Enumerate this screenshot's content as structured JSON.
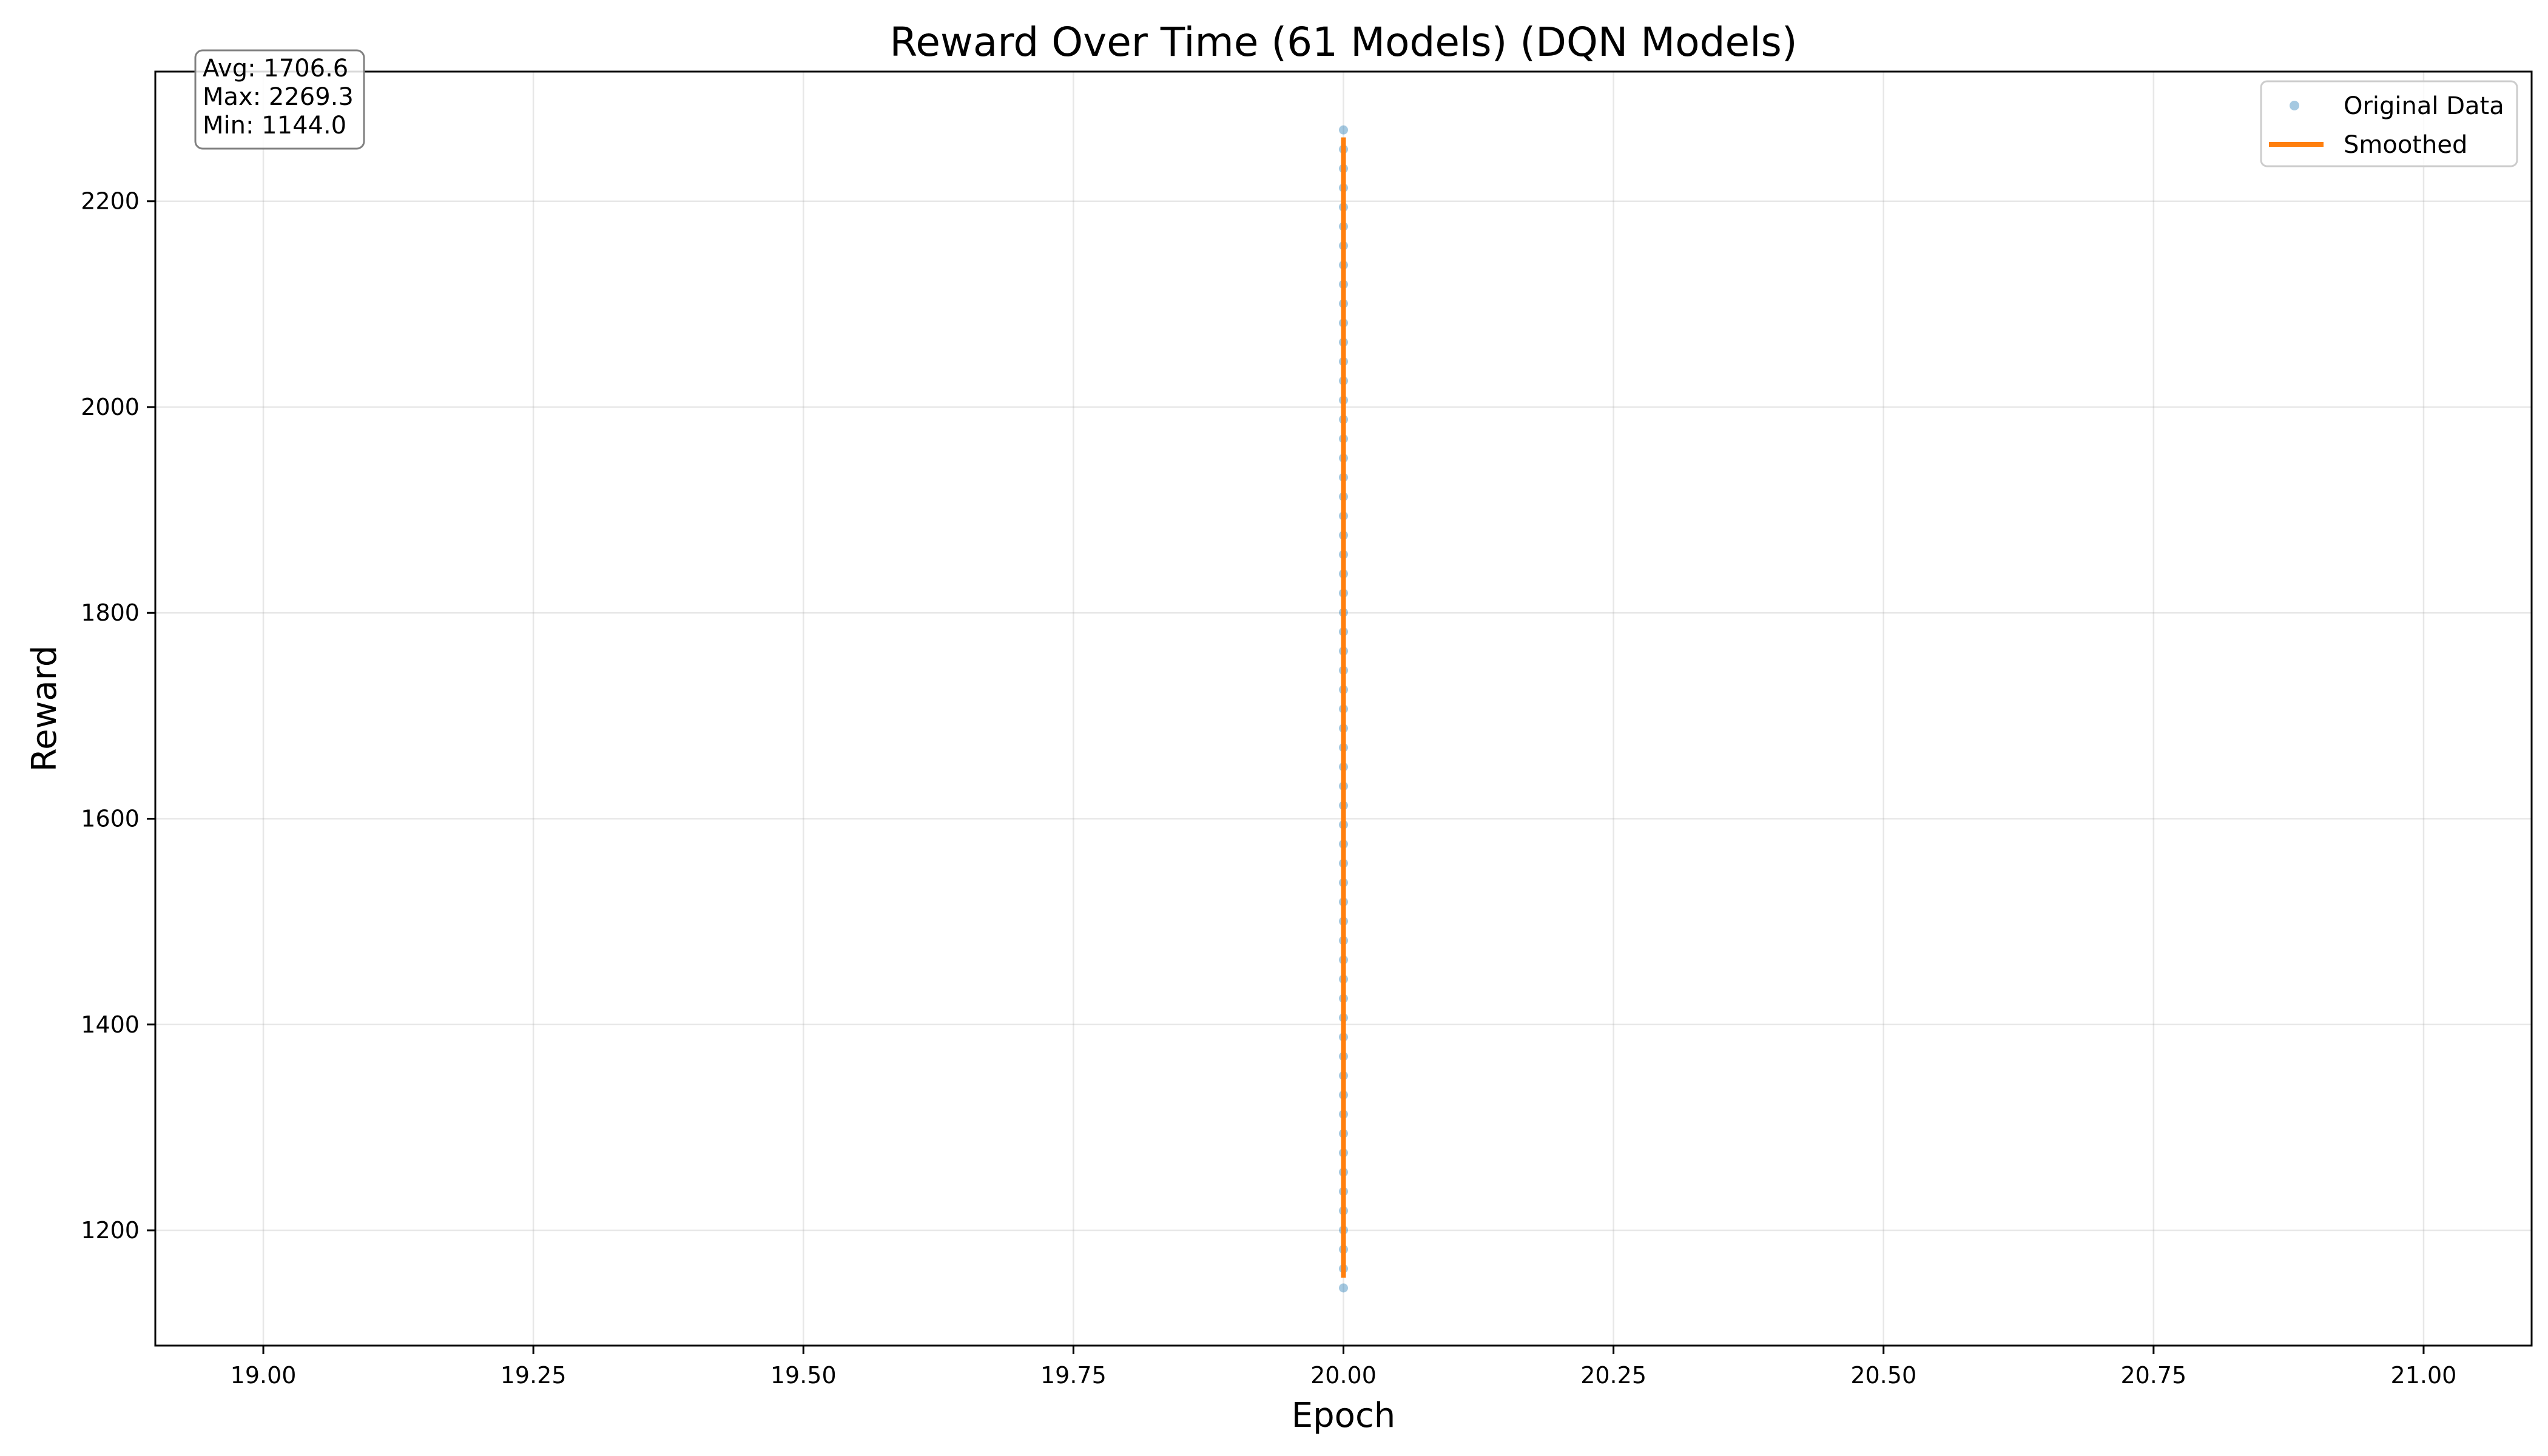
{
  "chart_data": {
    "type": "scatter",
    "title": "Reward Over Time (61 Models) (DQN Models)",
    "xlabel": "Epoch",
    "ylabel": "Reward",
    "xlim": [
      18.9,
      21.1
    ],
    "ylim": [
      1088,
      2326
    ],
    "xticks": [
      19.0,
      19.25,
      19.5,
      19.75,
      20.0,
      20.25,
      20.5,
      20.75,
      21.0
    ],
    "xtick_labels": [
      "19.00",
      "19.25",
      "19.50",
      "19.75",
      "20.00",
      "20.25",
      "20.50",
      "20.75",
      "21.00"
    ],
    "yticks": [
      1200,
      1400,
      1600,
      1800,
      2000,
      2200
    ],
    "ytick_labels": [
      "1200",
      "1400",
      "1600",
      "1800",
      "2000",
      "2200"
    ],
    "grid": true,
    "legend_position": "top-right",
    "colors": {
      "original": "#1f77b4",
      "smoothed": "#ff7f0e"
    },
    "stats": [
      "Avg: 1706.6",
      "Max: 2269.3",
      "Min: 1144.0"
    ],
    "series": [
      {
        "name": "Original Data",
        "kind": "points",
        "x": 20.0,
        "n": 61,
        "y_min": 1144.0,
        "y_max": 2269.3
      },
      {
        "name": "Smoothed",
        "kind": "line",
        "x": 20.0,
        "y_start": 1154,
        "y_end": 2262
      }
    ]
  }
}
